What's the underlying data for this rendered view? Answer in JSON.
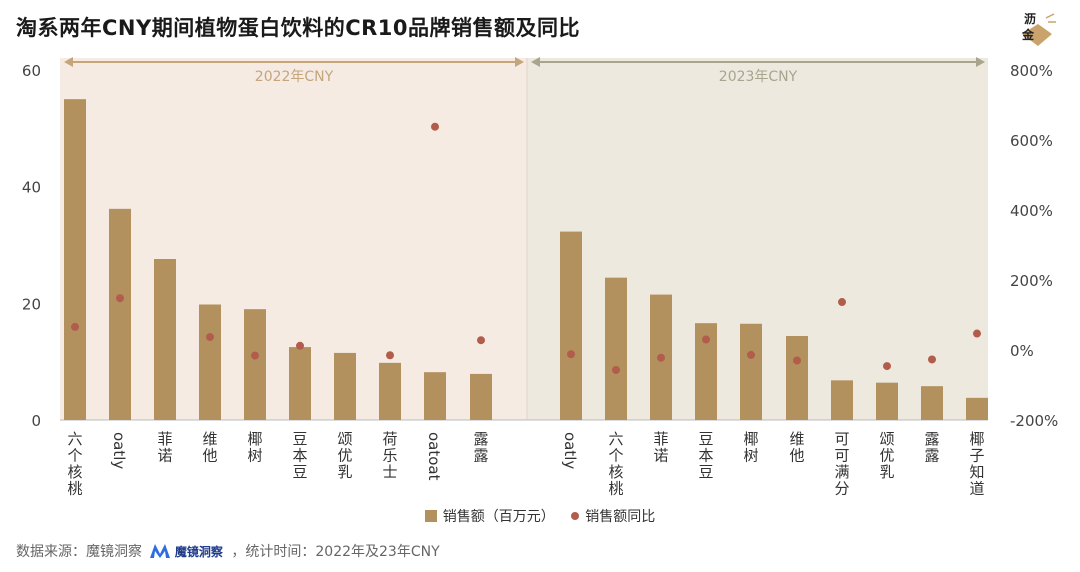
{
  "title": "淘系两年CNY期间植物蛋白饮料的CR10品牌销售额及同比",
  "logo_text": [
    "沥",
    "金"
  ],
  "legend": {
    "bar": "销售额（百万元）",
    "dot": "销售额同比"
  },
  "source": {
    "prefix": "数据来源：魔镜洞察",
    "brand": "魔镜洞察",
    "suffix": "，统计时间：2022年及23年CNY"
  },
  "colors": {
    "bar": "#b3915e",
    "dot": "#b25d4c",
    "panel_2022": "#f5ebe2",
    "panel_2023": "#eee9df",
    "header_2022": "#c4a57c",
    "header_2023": "#a7a58d"
  },
  "chart_data": {
    "type": "bar",
    "y_left": {
      "ylim": [
        0,
        60
      ],
      "ticks": [
        "0",
        "20",
        "40",
        "60"
      ]
    },
    "y_right": {
      "ylim": [
        -200,
        800
      ],
      "ticks": [
        "-200%",
        "0%",
        "200%",
        "400%",
        "600%",
        "800%"
      ]
    },
    "groups": [
      {
        "label": "2022年CNY",
        "categories": [
          "六个核桃",
          "oatly",
          "菲诺",
          "维他",
          "椰树",
          "豆本豆",
          "颂优乳",
          "荷乐士",
          "oatoat",
          "露露"
        ],
        "sales": [
          55,
          36.2,
          27.6,
          19.8,
          19,
          12.5,
          11.5,
          9.8,
          8.2,
          7.9
        ],
        "yoy": [
          66,
          148,
          null,
          37,
          -16,
          12,
          null,
          -15,
          638,
          28
        ]
      },
      {
        "label": "2023年CNY",
        "categories": [
          "oatly",
          "六个核桃",
          "菲诺",
          "豆本豆",
          "椰树",
          "维他",
          "可可满分",
          "颂优乳",
          "露露",
          "椰子知道"
        ],
        "sales": [
          32.3,
          24.4,
          21.5,
          16.6,
          16.5,
          14.4,
          6.8,
          6.4,
          5.8,
          3.8
        ],
        "yoy": [
          -12,
          -57,
          -22,
          30,
          -14,
          -30,
          137,
          -46,
          -27,
          47
        ]
      }
    ]
  }
}
